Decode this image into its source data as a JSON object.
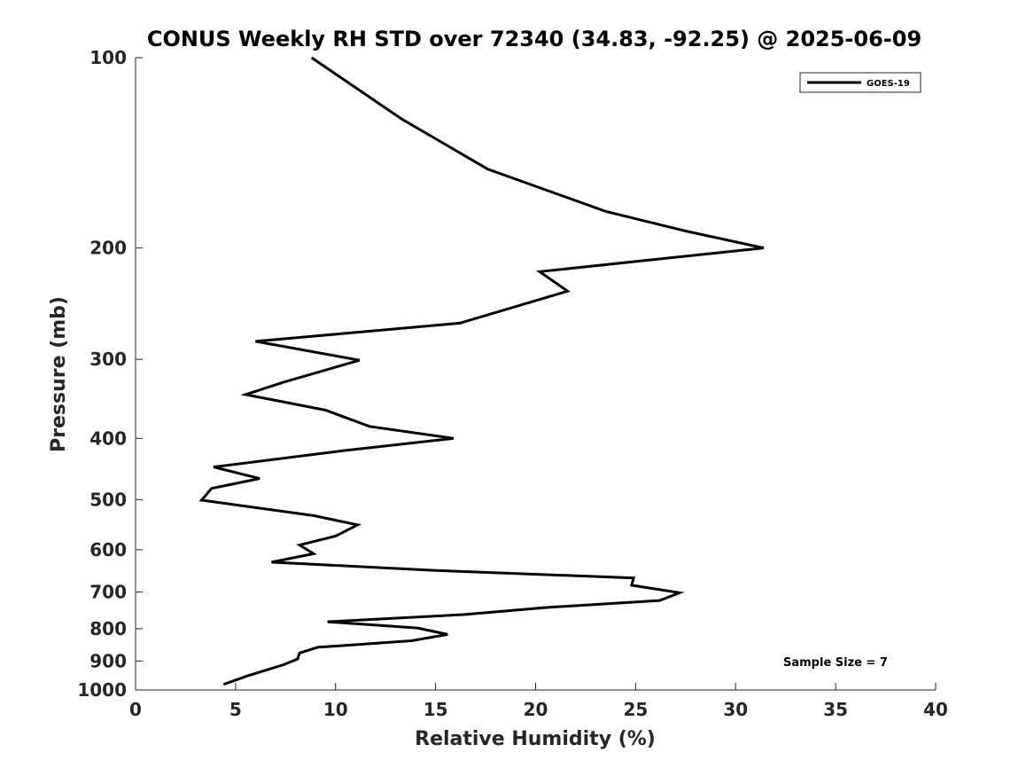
{
  "chart_data": {
    "type": "line",
    "title": "CONUS Weekly RH STD over 72340 (34.83, -92.25) @ 2025-06-09",
    "xlabel": "Relative Humidity (%)",
    "ylabel": "Pressure (mb)",
    "xlim": [
      0,
      40
    ],
    "ylim": [
      1000,
      100
    ],
    "y_scale": "log",
    "grid": false,
    "legend_position": "top-right",
    "x_ticks": [
      0,
      5,
      10,
      15,
      20,
      25,
      30,
      35,
      40
    ],
    "x_tick_labels": [
      "0",
      "5",
      "10",
      "15",
      "20",
      "25",
      "30",
      "35",
      "40"
    ],
    "y_ticks": [
      100,
      200,
      300,
      400,
      500,
      600,
      700,
      800,
      900,
      1000
    ],
    "y_tick_labels": [
      "100",
      "200",
      "300",
      "400",
      "500",
      "600",
      "700",
      "800",
      "900",
      "1000"
    ],
    "series": [
      {
        "name": "GOES-19",
        "color": "#000000",
        "points": [
          [
            8.8,
            100
          ],
          [
            13.3,
            125
          ],
          [
            17.6,
            150
          ],
          [
            23.5,
            175
          ],
          [
            27.5,
            188
          ],
          [
            31.4,
            200
          ],
          [
            20.2,
            218
          ],
          [
            21.6,
            234
          ],
          [
            16.2,
            263
          ],
          [
            6.0,
            281
          ],
          [
            11.2,
            301
          ],
          [
            7.4,
            326
          ],
          [
            5.5,
            341
          ],
          [
            9.5,
            361
          ],
          [
            11.7,
            383
          ],
          [
            15.9,
            400
          ],
          [
            10.5,
            418
          ],
          [
            3.9,
            444
          ],
          [
            6.2,
            463
          ],
          [
            3.8,
            480
          ],
          [
            3.3,
            501
          ],
          [
            8.9,
            530
          ],
          [
            11.1,
            548
          ],
          [
            10.0,
            571
          ],
          [
            8.2,
            590
          ],
          [
            8.9,
            609
          ],
          [
            6.8,
            628
          ],
          [
            15.0,
            647
          ],
          [
            24.9,
            665
          ],
          [
            24.8,
            683
          ],
          [
            27.2,
            702
          ],
          [
            26.2,
            722
          ],
          [
            20.4,
            741
          ],
          [
            16.4,
            760
          ],
          [
            9.6,
            780
          ],
          [
            14.1,
            798
          ],
          [
            15.6,
            817
          ],
          [
            13.8,
            836
          ],
          [
            9.1,
            856
          ],
          [
            8.2,
            874
          ],
          [
            8.1,
            893
          ],
          [
            7.4,
            912
          ],
          [
            5.6,
            950
          ],
          [
            4.4,
            980
          ]
        ]
      }
    ],
    "annotation": "Sample Size = 7"
  }
}
